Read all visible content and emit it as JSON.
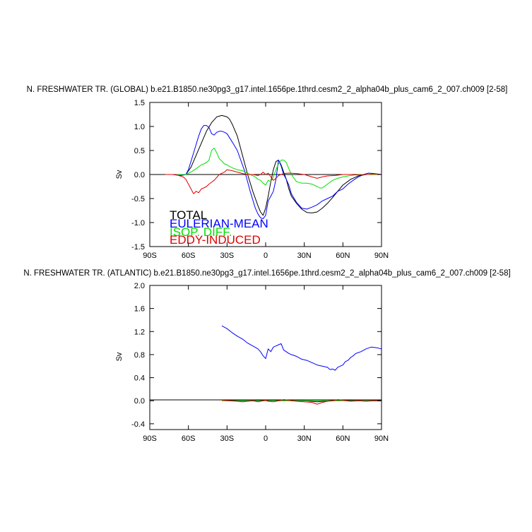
{
  "colors": {
    "total": "#000000",
    "eulerian": "#0000ff",
    "isop": "#00e000",
    "eddy": "#e00000",
    "axis": "#000000"
  },
  "chart_data": [
    {
      "type": "line",
      "title": "N. FRESHWATER TR. (GLOBAL) b.e21.B1850.ne30pg3_g17.intel.1656pe.1thrd.cesm2_2_alpha04b_plus_cam6_2_007.ch009 [2-58]",
      "ylabel": "Sv",
      "xlim": [
        -90,
        90
      ],
      "ylim": [
        -1.5,
        1.5
      ],
      "xticks": [
        -90,
        -60,
        -30,
        0,
        30,
        60,
        90
      ],
      "xtick_labels": [
        "90S",
        "60S",
        "30S",
        "0",
        "30N",
        "60N",
        "90N"
      ],
      "yticks": [
        -1.5,
        -1.0,
        -0.5,
        0.0,
        0.5,
        1.0,
        1.5
      ],
      "ytick_labels": [
        "-1.5",
        "-1.0",
        "-0.5",
        "0.0",
        "0.5",
        "1.0",
        "1.5"
      ],
      "zero_line": true,
      "legend": {
        "position": "bottom-left",
        "entries": [
          "TOTAL",
          "EULERIAN-MEAN",
          "ISOP. DIFF.",
          "EDDY-INDUCED"
        ]
      },
      "series": [
        {
          "name": "TOTAL",
          "color_key": "total",
          "x": [
            -78,
            -72,
            -66,
            -62,
            -58,
            -54,
            -50,
            -46,
            -42,
            -38,
            -34,
            -30,
            -28,
            -26,
            -22,
            -18,
            -14,
            -10,
            -6,
            -4,
            -2,
            0,
            2,
            4,
            6,
            8,
            10,
            12,
            14,
            16,
            18,
            20,
            24,
            28,
            32,
            36,
            40,
            44,
            48,
            52,
            56,
            60,
            66,
            72,
            78,
            84,
            90
          ],
          "y": [
            0,
            0,
            -0.02,
            0,
            0.15,
            0.4,
            0.65,
            0.9,
            1.08,
            1.2,
            1.23,
            1.2,
            1.15,
            1.05,
            0.8,
            0.4,
            0.0,
            -0.35,
            -0.65,
            -0.78,
            -0.85,
            -0.7,
            -0.45,
            -0.15,
            0.1,
            0.27,
            0.3,
            0.2,
            0.05,
            -0.1,
            -0.3,
            -0.45,
            -0.6,
            -0.72,
            -0.79,
            -0.8,
            -0.78,
            -0.7,
            -0.6,
            -0.48,
            -0.35,
            -0.22,
            -0.1,
            -0.03,
            0.0,
            0.0,
            0.0
          ]
        },
        {
          "name": "EULERIAN-MEAN",
          "color_key": "eulerian",
          "x": [
            -78,
            -72,
            -66,
            -62,
            -60,
            -56,
            -52,
            -50,
            -48,
            -46,
            -44,
            -42,
            -40,
            -38,
            -36,
            -34,
            -32,
            -30,
            -26,
            -22,
            -18,
            -16,
            -12,
            -8,
            -6,
            -4,
            -2,
            0,
            2,
            4,
            6,
            8,
            10,
            12,
            14,
            16,
            18,
            20,
            24,
            28,
            32,
            36,
            40,
            44,
            48,
            52,
            56,
            60,
            64,
            68,
            72,
            76,
            80,
            84,
            90
          ],
          "y": [
            0,
            0,
            -0.02,
            0.0,
            0.1,
            0.45,
            0.8,
            0.95,
            1.02,
            1.02,
            0.98,
            0.85,
            0.82,
            0.88,
            0.9,
            0.9,
            0.88,
            0.85,
            0.68,
            0.5,
            0.2,
            0.05,
            -0.35,
            -0.7,
            -0.82,
            -0.9,
            -0.92,
            -0.85,
            -0.55,
            -0.45,
            -0.35,
            -0.1,
            0.3,
            0.18,
            0.0,
            -0.1,
            -0.22,
            -0.4,
            -0.58,
            -0.7,
            -0.72,
            -0.68,
            -0.63,
            -0.55,
            -0.5,
            -0.45,
            -0.35,
            -0.3,
            -0.2,
            -0.12,
            -0.05,
            0.0,
            0.03,
            0.02,
            0.0
          ]
        },
        {
          "name": "ISOP. DIFF.",
          "color_key": "isop",
          "x": [
            -78,
            -70,
            -62,
            -58,
            -54,
            -50,
            -48,
            -46,
            -44,
            -42,
            -40,
            -38,
            -36,
            -34,
            -32,
            -30,
            -26,
            -22,
            -18,
            -16,
            -12,
            -8,
            -6,
            -4,
            -2,
            0,
            2,
            4,
            6,
            8,
            10,
            12,
            14,
            16,
            18,
            20,
            24,
            28,
            32,
            36,
            40,
            42,
            44,
            48,
            52,
            56,
            60,
            66,
            72,
            78,
            84,
            90
          ],
          "y": [
            0,
            0,
            0.0,
            0.05,
            0.12,
            0.2,
            0.22,
            0.25,
            0.3,
            0.5,
            0.55,
            0.45,
            0.33,
            0.28,
            0.22,
            0.2,
            0.14,
            0.1,
            0.08,
            0.05,
            0.0,
            -0.05,
            -0.1,
            -0.12,
            -0.18,
            -0.22,
            -0.12,
            -0.15,
            -0.05,
            0.1,
            0.22,
            0.3,
            0.3,
            0.25,
            0.12,
            0.0,
            -0.15,
            -0.18,
            -0.18,
            -0.2,
            -0.25,
            -0.28,
            -0.28,
            -0.2,
            -0.12,
            -0.08,
            -0.05,
            -0.02,
            0.0,
            0.0,
            0.0,
            0.0
          ]
        },
        {
          "name": "EDDY-INDUCED",
          "color_key": "eddy",
          "x": [
            -78,
            -70,
            -64,
            -62,
            -60,
            -58,
            -56,
            -54,
            -52,
            -50,
            -48,
            -46,
            -44,
            -40,
            -36,
            -32,
            -30,
            -26,
            -22,
            -18,
            -14,
            -10,
            -6,
            -4,
            -2,
            0,
            2,
            4,
            6,
            8,
            10,
            12,
            14,
            18,
            24,
            30,
            36,
            40,
            44,
            48,
            54,
            60,
            66,
            72,
            78,
            84,
            90
          ],
          "y": [
            0,
            0,
            -0.05,
            -0.1,
            -0.2,
            -0.3,
            -0.4,
            -0.35,
            -0.38,
            -0.3,
            -0.28,
            -0.25,
            -0.2,
            -0.12,
            0.0,
            0.05,
            0.1,
            0.08,
            0.05,
            0.02,
            0.0,
            0.0,
            -0.02,
            0.0,
            0.05,
            0.0,
            0.03,
            -0.05,
            -0.12,
            -0.08,
            -0.02,
            0.0,
            0.02,
            0.03,
            0.02,
            0.0,
            -0.05,
            -0.08,
            -0.05,
            -0.03,
            -0.02,
            0.0,
            0.0,
            -0.01,
            0.0,
            0.01,
            0.0
          ]
        }
      ]
    },
    {
      "type": "line",
      "title": "N. FRESHWATER TR. (ATLANTIC) b.e21.B1850.ne30pg3_g17.intel.1656pe.1thrd.cesm2_2_alpha04b_plus_cam6_2_007.ch009 [2-58]",
      "ylabel": "Sv",
      "xlim": [
        -90,
        90
      ],
      "ylim": [
        -0.5,
        2.0
      ],
      "xticks": [
        -90,
        -60,
        -30,
        0,
        30,
        60,
        90
      ],
      "xtick_labels": [
        "90S",
        "60S",
        "30S",
        "0",
        "30N",
        "60N",
        "90N"
      ],
      "yticks": [
        -0.4,
        0.0,
        0.4,
        0.8,
        1.2,
        1.6,
        2.0
      ],
      "ytick_labels": [
        "-0.4",
        "0.0",
        "0.4",
        "0.8",
        "1.2",
        "1.6",
        "2.0"
      ],
      "zero_line": true,
      "series": [
        {
          "name": "TOTAL",
          "color_key": "total",
          "x": [
            -34,
            -20,
            -10,
            0,
            10,
            20,
            30,
            40,
            50,
            60,
            70,
            80,
            90
          ],
          "y": [
            0.01,
            0.0,
            0.0,
            0.01,
            0.01,
            0.0,
            0.0,
            -0.02,
            0.0,
            0.01,
            0.0,
            0.0,
            0.0
          ]
        },
        {
          "name": "EULERIAN-MEAN",
          "color_key": "eulerian",
          "x": [
            -34,
            -30,
            -26,
            -22,
            -18,
            -14,
            -10,
            -6,
            -4,
            -2,
            0,
            2,
            4,
            6,
            8,
            10,
            12,
            14,
            16,
            18,
            20,
            24,
            28,
            32,
            36,
            40,
            44,
            48,
            50,
            52,
            54,
            56,
            58,
            60,
            62,
            64,
            66,
            68,
            70,
            74,
            78,
            82,
            86,
            90
          ],
          "y": [
            1.3,
            1.25,
            1.18,
            1.12,
            1.07,
            1.0,
            0.95,
            0.9,
            0.85,
            0.78,
            0.73,
            0.9,
            0.85,
            0.93,
            0.95,
            0.97,
            0.99,
            0.88,
            0.85,
            0.82,
            0.8,
            0.77,
            0.72,
            0.7,
            0.66,
            0.62,
            0.6,
            0.58,
            0.54,
            0.55,
            0.53,
            0.58,
            0.6,
            0.62,
            0.68,
            0.7,
            0.75,
            0.78,
            0.82,
            0.85,
            0.9,
            0.93,
            0.92,
            0.9
          ]
        },
        {
          "name": "ISOP. DIFF.",
          "color_key": "isop",
          "x": [
            -34,
            -20,
            -10,
            0,
            10,
            20,
            30,
            40,
            50,
            60,
            70,
            80,
            90
          ],
          "y": [
            0.0,
            0.0,
            0.0,
            0.0,
            0.0,
            0.0,
            0.0,
            0.0,
            0.0,
            0.0,
            0.0,
            0.0,
            0.0
          ]
        },
        {
          "name": "EDDY-INDUCED",
          "color_key": "eddy",
          "x": [
            -34,
            -28,
            -22,
            -18,
            -14,
            -10,
            -6,
            -2,
            0,
            2,
            6,
            10,
            14,
            18,
            24,
            30,
            36,
            40,
            44,
            48,
            52,
            56,
            60,
            66,
            72,
            78,
            84,
            90
          ],
          "y": [
            0.01,
            0.0,
            -0.01,
            -0.02,
            -0.01,
            0.0,
            -0.02,
            0.0,
            0.01,
            -0.01,
            -0.02,
            0.0,
            0.02,
            0.01,
            -0.01,
            -0.02,
            -0.03,
            -0.06,
            -0.03,
            -0.01,
            0.0,
            0.02,
            0.01,
            -0.01,
            0.0,
            -0.01,
            0.0,
            0.0
          ]
        }
      ]
    }
  ]
}
